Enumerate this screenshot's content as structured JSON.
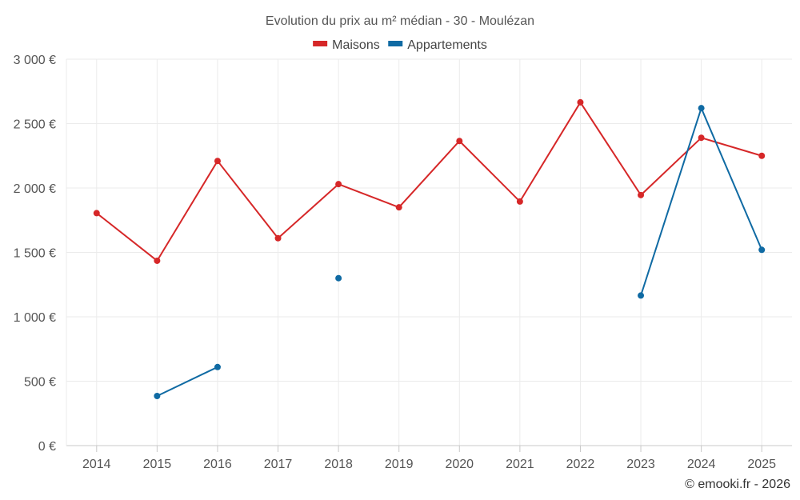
{
  "chart_data": {
    "type": "line",
    "title": "Evolution du prix au m² médian - 30 - Moulézan",
    "categories": [
      "2014",
      "2015",
      "2016",
      "2017",
      "2018",
      "2019",
      "2020",
      "2021",
      "2022",
      "2023",
      "2024",
      "2025"
    ],
    "ylim": [
      0,
      3000
    ],
    "yticks": [
      0,
      500,
      1000,
      1500,
      2000,
      2500,
      3000
    ],
    "ytick_labels": [
      "0 €",
      "500 €",
      "1 000 €",
      "1 500 €",
      "2 000 €",
      "2 500 €",
      "3 000 €"
    ],
    "legend_position": "top-center",
    "grid": true,
    "series": [
      {
        "name": "Maisons",
        "color": "#d62728",
        "values": [
          1805,
          1435,
          2210,
          1610,
          2030,
          1850,
          2365,
          1895,
          2665,
          1945,
          2390,
          2250
        ]
      },
      {
        "name": "Appartements",
        "color": "#0f6aa3",
        "values": [
          null,
          385,
          610,
          null,
          1300,
          null,
          null,
          null,
          null,
          1165,
          2620,
          1520
        ]
      }
    ]
  },
  "credit": "© emooki.fr - 2026"
}
